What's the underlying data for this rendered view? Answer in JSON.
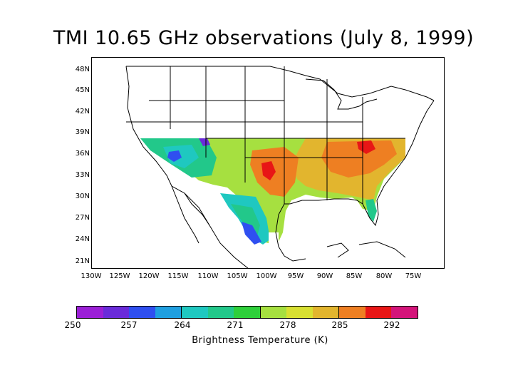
{
  "title": "TMI 10.65 GHz observations (July 8, 1999)",
  "lat_labels": [
    "48N",
    "45N",
    "42N",
    "39N",
    "36N",
    "33N",
    "30N",
    "27N",
    "24N",
    "21N"
  ],
  "lon_labels": [
    "130W",
    "125W",
    "120W",
    "115W",
    "110W",
    "105W",
    "100W",
    "95W",
    "90W",
    "85W",
    "80W",
    "75W"
  ],
  "colorbar": {
    "ticks": [
      "250",
      "257",
      "264",
      "271",
      "278",
      "285",
      "292"
    ],
    "colors": [
      "#9b1fd6",
      "#6a2bd9",
      "#2f4ff0",
      "#1f9fe0",
      "#1fc8c0",
      "#22c88a",
      "#2ecf3a",
      "#a6e040",
      "#d8e032",
      "#e2b52e",
      "#ee7f22",
      "#e81616",
      "#d4147a"
    ],
    "label": "Brightness Temperature (K)"
  },
  "map": {
    "ocean_color": "#ffffff",
    "coastline_color": "#000000",
    "data_note_colors": {
      "warm": "#ee7f22",
      "hot": "#e81616",
      "mild": "#a6e040",
      "cool": "#1fc8c0",
      "cold": "#2f4ff0"
    }
  }
}
